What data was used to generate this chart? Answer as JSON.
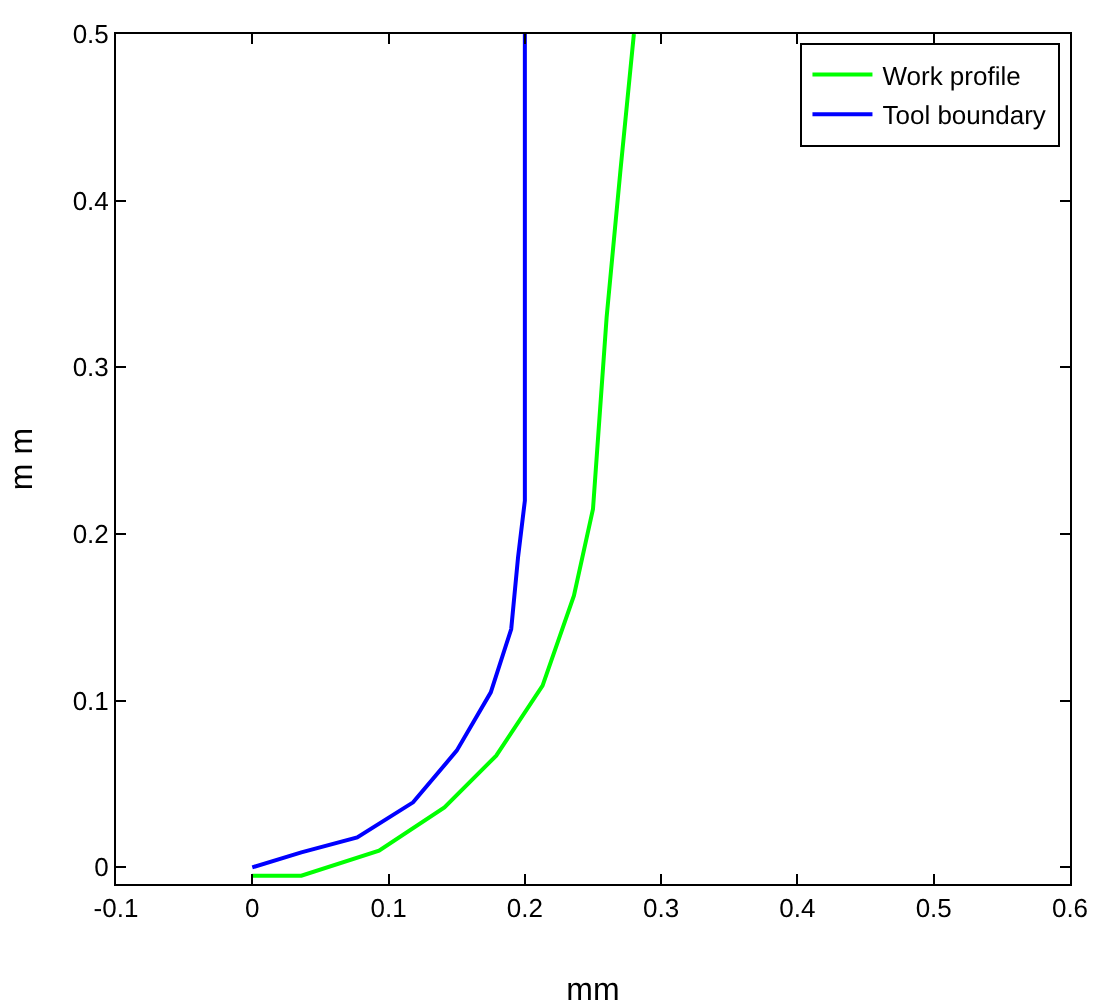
{
  "chart_data": {
    "type": "line",
    "xlabel": "mm",
    "ylabel": "m m",
    "series": [
      {
        "name": "Work profile",
        "color": "#00ff00",
        "x": [
          0,
          0.036,
          0.093,
          0.141,
          0.179,
          0.213,
          0.236,
          0.25,
          0.26,
          0.27,
          0.28
        ],
        "values": [
          -0.005,
          -0.005,
          0.01,
          0.036,
          0.067,
          0.109,
          0.163,
          0.215,
          0.33,
          0.417,
          0.5
        ]
      },
      {
        "name": "Tool boundary",
        "color": "#0000ff",
        "x": [
          0,
          0.036,
          0.077,
          0.118,
          0.15,
          0.175,
          0.19,
          0.195,
          0.2,
          0.2
        ],
        "values": [
          0,
          0.009,
          0.018,
          0.039,
          0.07,
          0.105,
          0.143,
          0.186,
          0.22,
          0.5
        ]
      }
    ],
    "xlim": [
      -0.1,
      0.6
    ],
    "xticks": [
      -0.1,
      0,
      0.1,
      0.2,
      0.3,
      0.4,
      0.5,
      0.6
    ],
    "ylim": [
      -0.01,
      0.5
    ],
    "yticks": [
      0,
      0.1,
      0.2,
      0.3,
      0.4,
      0.5
    ],
    "grid": false,
    "legend": "top right",
    "marker": "none",
    "line_style": "solid"
  }
}
